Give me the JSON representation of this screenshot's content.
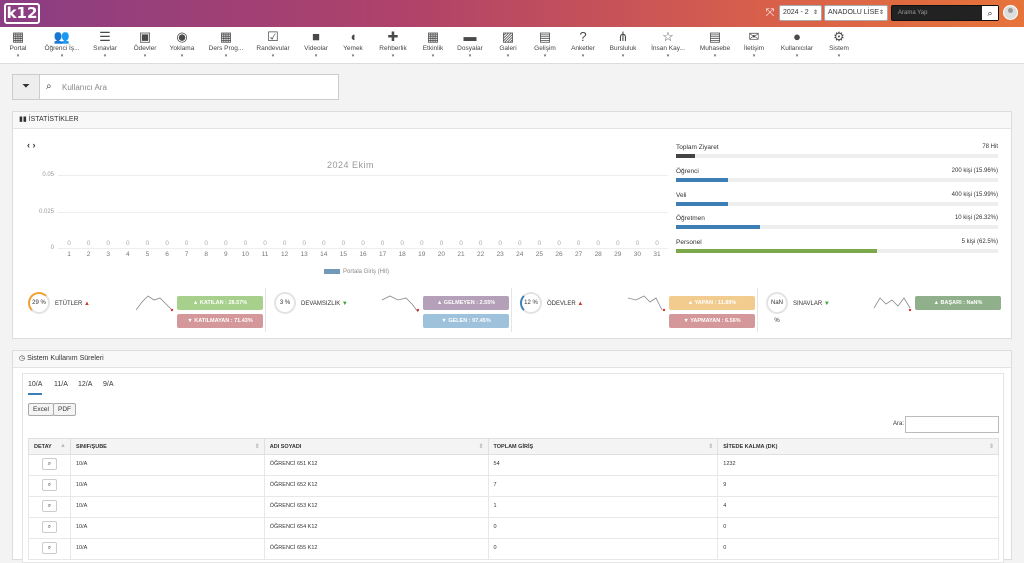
{
  "app": {
    "logo": "k12"
  },
  "topbar": {
    "year": "2024 - 2",
    "school": "ANADOLU LİSE",
    "search_placeholder": "Arama Yap"
  },
  "menu": [
    {
      "g": "▦",
      "label": "Portal"
    },
    {
      "g": "👥",
      "label": "Öğrenci İş..."
    },
    {
      "g": "☰",
      "label": "Sınavlar"
    },
    {
      "g": "▣",
      "label": "Ödevler"
    },
    {
      "g": "◉",
      "label": "Yoklama"
    },
    {
      "g": "▦",
      "label": "Ders Prog..."
    },
    {
      "g": "☑",
      "label": "Randevular"
    },
    {
      "g": "■",
      "label": "Videolar"
    },
    {
      "g": "◖",
      "label": "Yemek"
    },
    {
      "g": "✚",
      "label": "Rehberlik"
    },
    {
      "g": "▦",
      "label": "Etkinlik"
    },
    {
      "g": "▬",
      "label": "Dosyalar"
    },
    {
      "g": "▨",
      "label": "Galeri"
    },
    {
      "g": "▤",
      "label": "Gelişim"
    },
    {
      "g": "?",
      "label": "Anketler"
    },
    {
      "g": "⋔",
      "label": "Bursluluk"
    },
    {
      "g": "☆",
      "label": "İnsan Kay..."
    },
    {
      "g": "▤",
      "label": "Muhasebe"
    },
    {
      "g": "✉",
      "label": "İletişim"
    },
    {
      "g": "●",
      "label": "Kullanıcılar"
    },
    {
      "g": "⚙",
      "label": "Sistem"
    }
  ],
  "filter": {
    "placeholder": "Kullanıcı Ara"
  },
  "stats_panel": {
    "title": "İSTATİSTİKLER"
  },
  "chart_data": {
    "type": "bar",
    "title": "2024 Ekim",
    "legend": "Portala Giriş (Hit)",
    "x": [
      1,
      2,
      3,
      4,
      5,
      6,
      7,
      8,
      9,
      10,
      11,
      12,
      13,
      14,
      15,
      16,
      17,
      18,
      19,
      20,
      21,
      22,
      23,
      24,
      25,
      26,
      27,
      28,
      29,
      30,
      31
    ],
    "values": [
      0,
      0,
      0,
      0,
      0,
      0,
      0,
      0,
      0,
      0,
      0,
      0,
      0,
      0,
      0,
      0,
      0,
      0,
      0,
      0,
      0,
      0,
      0,
      0,
      0,
      0,
      0,
      0,
      0,
      0,
      0
    ],
    "y_ticks": [
      "0.05",
      "0.025",
      "0"
    ]
  },
  "visit_stats": [
    {
      "label": "Toplam Ziyaret",
      "value": "78 Hit",
      "frac": 0.06,
      "color": "#444444"
    },
    {
      "label": "Öğrenci",
      "value": "200 kişi (15.96%)",
      "frac": 0.16,
      "color": "#3d7fb5"
    },
    {
      "label": "Veli",
      "value": "400 kişi (15.99%)",
      "frac": 0.16,
      "color": "#3d7fb5"
    },
    {
      "label": "Öğretmen",
      "value": "10 kişi (26.32%)",
      "frac": 0.26,
      "color": "#3d7fb5"
    },
    {
      "label": "Personel",
      "value": "5 kişi (62.5%)",
      "frac": 0.625,
      "color": "#7aa84a"
    }
  ],
  "kpis": [
    {
      "pct": "29 %",
      "label": "ETÜTLER",
      "arrow": "up",
      "p1": "▲ KATILAN : 28.57%",
      "c1": "#a8d08d",
      "p2": "▼ KATILMAYAN : 71.43%",
      "c2": "#d4989b"
    },
    {
      "pct": "3 %",
      "label": "DEVAMSIZLIK",
      "arrow": "dn",
      "p1": "▲ GELMEYEN : 2.55%",
      "c1": "#b4a0b8",
      "p2": "▼ GELEN : 97.45%",
      "c2": "#9ec1dc"
    },
    {
      "pct": "12 %",
      "label": "ÖDEVLER",
      "arrow": "up",
      "p1": "▲ YAPAN : 11.89%",
      "c1": "#f2cc8f",
      "p2": "▼ YAPMAYAN : 6.56%",
      "c2": "#d4989b"
    },
    {
      "pct": "NaN %",
      "label": "SINAVLAR",
      "arrow": "dn",
      "p1": "▲ BAŞARI : NaN%",
      "c1": "#8fb08a",
      "p2": "",
      "c2": ""
    }
  ],
  "usage_panel": {
    "title": "Sistem Kullanım Süreleri",
    "tabs": [
      "10/A",
      "11/A",
      "12/A",
      "9/A"
    ],
    "excel": "Excel",
    "pdf": "PDF",
    "search_label": "Ara:"
  },
  "table": {
    "headers": [
      "DETAY",
      "SINIF/ŞUBE",
      "ADI SOYADI",
      "TOPLAM GİRİŞ",
      "SİTEDE KALMA (DK)"
    ],
    "rows": [
      [
        "10/A",
        "ÖĞRENCİ 651 K12",
        "54",
        "1232"
      ],
      [
        "10/A",
        "ÖĞRENCİ 652 K12",
        "7",
        "9"
      ],
      [
        "10/A",
        "ÖĞRENCİ 653 K12",
        "1",
        "4"
      ],
      [
        "10/A",
        "ÖĞRENCİ 654 K12",
        "0",
        "0"
      ],
      [
        "10/A",
        "ÖĞRENCİ 655 K12",
        "0",
        "0"
      ]
    ]
  }
}
